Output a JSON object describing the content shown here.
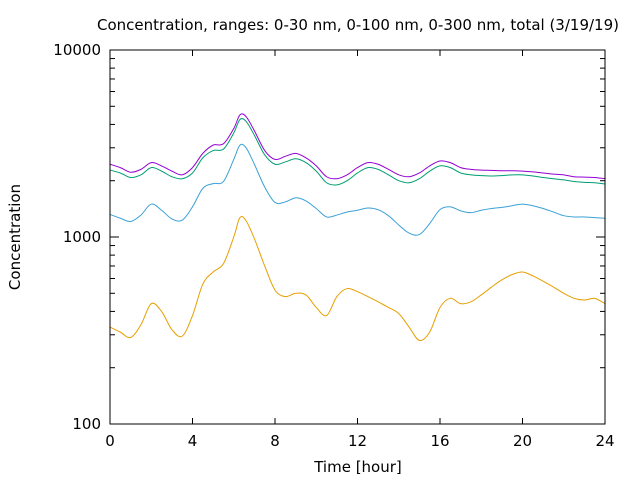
{
  "chart_data": {
    "type": "line",
    "title": "Concentration, ranges: 0-30 nm, 0-100 nm, 0-300 nm, total (3/19/19)",
    "xlabel": "Time [hour]",
    "ylabel": "Concentration",
    "x_scale": "linear",
    "y_scale": "log",
    "xlim": [
      0,
      24
    ],
    "ylim": [
      100,
      10000
    ],
    "x_ticks": [
      0,
      4,
      8,
      12,
      16,
      20,
      24
    ],
    "x_tick_labels": [
      "0",
      "4",
      "8",
      "12",
      "16",
      "20",
      "24"
    ],
    "y_ticks": [
      100,
      1000,
      10000
    ],
    "y_tick_labels": [
      "100",
      "1000",
      "10000"
    ],
    "y_minor_ticks": [
      200,
      300,
      400,
      500,
      600,
      700,
      800,
      900,
      2000,
      3000,
      4000,
      5000,
      6000,
      7000,
      8000,
      9000
    ],
    "grid": false,
    "legend": "none",
    "series": [
      {
        "color": "#9400d3",
        "x": [
          0,
          0.5,
          1,
          1.5,
          2,
          2.5,
          3,
          3.5,
          4,
          4.5,
          5,
          5.5,
          6,
          6.3,
          6.6,
          7,
          7.5,
          8,
          8.5,
          9,
          9.5,
          10,
          10.5,
          11,
          11.5,
          12,
          12.5,
          13,
          13.5,
          14,
          14.5,
          15,
          15.5,
          16,
          16.5,
          17,
          17.5,
          18,
          18.5,
          19,
          19.5,
          20,
          20.5,
          21,
          21.5,
          22,
          22.5,
          23,
          23.5,
          24
        ],
        "y": [
          2450,
          2350,
          2220,
          2300,
          2500,
          2400,
          2250,
          2150,
          2350,
          2800,
          3100,
          3150,
          3800,
          4500,
          4400,
          3700,
          2900,
          2600,
          2700,
          2800,
          2650,
          2400,
          2100,
          2050,
          2150,
          2350,
          2500,
          2450,
          2300,
          2150,
          2100,
          2200,
          2400,
          2550,
          2500,
          2350,
          2300,
          2280,
          2270,
          2260,
          2260,
          2250,
          2230,
          2200,
          2170,
          2150,
          2100,
          2090,
          2080,
          2050
        ]
      },
      {
        "color": "#009e73",
        "x": [
          0,
          0.5,
          1,
          1.5,
          2,
          2.5,
          3,
          3.5,
          4,
          4.5,
          5,
          5.5,
          6,
          6.3,
          6.6,
          7,
          7.5,
          8,
          8.5,
          9,
          9.5,
          10,
          10.5,
          11,
          11.5,
          12,
          12.5,
          13,
          13.5,
          14,
          14.5,
          15,
          15.5,
          16,
          16.5,
          17,
          17.5,
          18,
          18.5,
          19,
          19.5,
          20,
          20.5,
          21,
          21.5,
          22,
          22.5,
          23,
          23.5,
          24
        ],
        "y": [
          2280,
          2200,
          2080,
          2150,
          2350,
          2250,
          2100,
          2050,
          2200,
          2650,
          2900,
          2950,
          3600,
          4250,
          4150,
          3500,
          2750,
          2450,
          2520,
          2620,
          2500,
          2250,
          1950,
          1900,
          2000,
          2200,
          2350,
          2300,
          2150,
          2000,
          1950,
          2050,
          2250,
          2400,
          2350,
          2200,
          2150,
          2130,
          2120,
          2130,
          2150,
          2150,
          2120,
          2080,
          2050,
          2020,
          1980,
          1960,
          1950,
          1920
        ]
      },
      {
        "color": "#3ba1d6",
        "x": [
          0,
          0.5,
          1,
          1.5,
          2,
          2.5,
          3,
          3.5,
          4,
          4.5,
          5,
          5.5,
          6,
          6.3,
          6.6,
          7,
          7.5,
          8,
          8.5,
          9,
          9.5,
          10,
          10.5,
          11,
          11.5,
          12,
          12.5,
          13,
          13.5,
          14,
          14.5,
          15,
          15.5,
          16,
          16.5,
          17,
          17.5,
          18,
          18.5,
          19,
          19.5,
          20,
          20.5,
          21,
          21.5,
          22,
          22.5,
          23,
          23.5,
          24
        ],
        "y": [
          1320,
          1260,
          1210,
          1310,
          1500,
          1390,
          1250,
          1230,
          1450,
          1820,
          1930,
          1980,
          2600,
          3100,
          3000,
          2450,
          1850,
          1530,
          1540,
          1620,
          1560,
          1420,
          1280,
          1310,
          1360,
          1390,
          1430,
          1400,
          1300,
          1160,
          1050,
          1030,
          1180,
          1400,
          1450,
          1380,
          1350,
          1390,
          1420,
          1440,
          1470,
          1500,
          1470,
          1420,
          1360,
          1300,
          1280,
          1280,
          1270,
          1260
        ]
      },
      {
        "color": "#e69f00",
        "x": [
          0,
          0.5,
          1,
          1.5,
          2,
          2.5,
          3,
          3.5,
          4,
          4.5,
          5,
          5.5,
          6,
          6.3,
          6.6,
          7,
          7.5,
          8,
          8.5,
          9,
          9.5,
          10,
          10.5,
          11,
          11.5,
          12,
          12.5,
          13,
          13.5,
          14,
          14.5,
          15,
          15.5,
          16,
          16.5,
          17,
          17.5,
          18,
          18.5,
          19,
          19.5,
          20,
          20.5,
          21,
          21.5,
          22,
          22.5,
          23,
          23.5,
          24
        ],
        "y": [
          330,
          310,
          290,
          340,
          440,
          400,
          320,
          295,
          380,
          560,
          650,
          720,
          1000,
          1270,
          1220,
          980,
          700,
          520,
          480,
          500,
          490,
          420,
          380,
          480,
          530,
          510,
          480,
          450,
          420,
          390,
          330,
          280,
          310,
          420,
          470,
          440,
          450,
          490,
          540,
          590,
          630,
          650,
          620,
          580,
          540,
          500,
          470,
          460,
          470,
          440
        ]
      }
    ]
  }
}
